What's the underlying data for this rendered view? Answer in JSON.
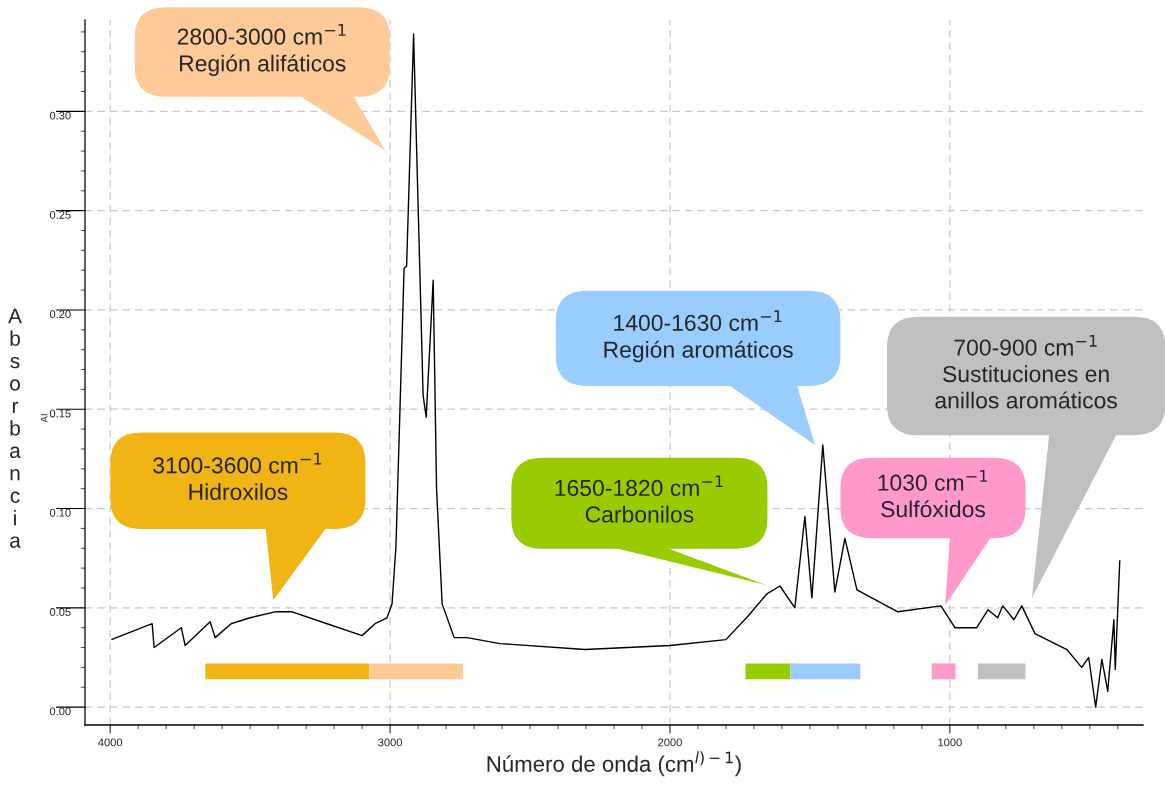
{
  "chart_data": {
    "type": "line",
    "xlabel": "Número de onda (cm$^{l)−1}$)",
    "ylabel": "Absorbancia",
    "xlim": [
      4090,
      310
    ],
    "ylim": [
      -0.009,
      0.346
    ],
    "xticks": [
      4000,
      {
        "value": 3900,
        "label": null
      },
      {
        "value": 3800,
        "label": null
      },
      {
        "value": 3700,
        "label": null
      },
      {
        "value": 3600,
        "label": null
      },
      {
        "value": 3500,
        "label": null
      },
      {
        "value": 3400,
        "label": null
      },
      {
        "value": 3300,
        "label": null
      },
      {
        "value": 3200,
        "label": null
      },
      {
        "value": 3100,
        "label": null
      },
      3000,
      {
        "value": 2900,
        "label": null
      },
      {
        "value": 2800,
        "label": null
      },
      {
        "value": 2700,
        "label": null
      },
      {
        "value": 2600,
        "label": null
      },
      {
        "value": 2500,
        "label": null
      },
      {
        "value": 2400,
        "label": null
      },
      {
        "value": 2300,
        "label": null
      },
      {
        "value": 2200,
        "label": null
      },
      {
        "value": 2100,
        "label": null
      },
      2000,
      {
        "value": 1900,
        "label": null
      },
      {
        "value": 1800,
        "label": null
      },
      {
        "value": 1700,
        "label": null
      },
      {
        "value": 1600,
        "label": null
      },
      {
        "value": 1500,
        "label": null
      },
      {
        "value": 1400,
        "label": null
      },
      {
        "value": 1300,
        "label": null
      },
      {
        "value": 1200,
        "label": null
      },
      {
        "value": 1100,
        "label": null
      },
      1000,
      {
        "value": 900,
        "label": null
      },
      {
        "value": 800,
        "label": null
      },
      {
        "value": 700,
        "label": null
      },
      {
        "value": 600,
        "label": null
      },
      {
        "value": 500,
        "label": null
      },
      {
        "value": 400,
        "label": null
      }
    ],
    "yticks": [
      {
        "value": 0,
        "label": "0.00"
      },
      {
        "value": 0.01,
        "label": null
      },
      {
        "value": 0.02,
        "label": null
      },
      {
        "value": 0.03,
        "label": null
      },
      {
        "value": 0.04,
        "label": null
      },
      {
        "value": 0.05,
        "label": "0.05"
      },
      {
        "value": 0.06,
        "label": null
      },
      {
        "value": 0.07,
        "label": null
      },
      {
        "value": 0.08,
        "label": null
      },
      {
        "value": 0.09,
        "label": null
      },
      {
        "value": 0.1,
        "label": "0.10"
      },
      {
        "value": 0.11,
        "label": null
      },
      {
        "value": 0.12,
        "label": null
      },
      {
        "value": 0.13,
        "label": null
      },
      {
        "value": 0.14,
        "label": null
      },
      {
        "value": 0.15,
        "label": "0.15"
      },
      {
        "value": 0.16,
        "label": null
      },
      {
        "value": 0.17,
        "label": null
      },
      {
        "value": 0.18,
        "label": null
      },
      {
        "value": 0.19,
        "label": null
      },
      {
        "value": 0.2,
        "label": "0.20"
      },
      {
        "value": 0.21,
        "label": null
      },
      {
        "value": 0.22,
        "label": null
      },
      {
        "value": 0.23,
        "label": null
      },
      {
        "value": 0.24,
        "label": null
      },
      {
        "value": 0.25,
        "label": "0.25"
      },
      {
        "value": 0.26,
        "label": null
      },
      {
        "value": 0.27,
        "label": null
      },
      {
        "value": 0.28,
        "label": null
      },
      {
        "value": 0.29,
        "label": null
      },
      {
        "value": 0.3,
        "label": "0.30"
      },
      {
        "value": 0.31,
        "label": null
      },
      {
        "value": 0.32,
        "label": null
      },
      {
        "value": 0.33,
        "label": null
      },
      {
        "value": 0.34,
        "label": null
      }
    ],
    "grid": true,
    "line_style": "solid",
    "marker": "none",
    "series": [
      {
        "color": "#000000",
        "x": [
          3996,
          3850,
          3843,
          3746,
          3732,
          3643,
          3625,
          3568,
          3500,
          3411,
          3350,
          3225,
          3100,
          3054,
          3011,
          2993,
          2979,
          2950,
          2941,
          2916,
          2882,
          2871,
          2846,
          2834,
          2814,
          2771,
          2725,
          2607,
          2304,
          2000,
          1800,
          1720,
          1654,
          1607,
          1554,
          1518,
          1493,
          1454,
          1411,
          1375,
          1332,
          1186,
          1032,
          982,
          904,
          864,
          829,
          811,
          771,
          743,
          696,
          582,
          529,
          504,
          479,
          457,
          436,
          414,
          409,
          393
        ],
        "values": [
          0.034,
          0.042,
          0.03,
          0.04,
          0.031,
          0.043,
          0.035,
          0.042,
          0.045,
          0.048,
          0.048,
          0.042,
          0.036,
          0.042,
          0.045,
          0.052,
          0.081,
          0.221,
          0.222,
          0.339,
          0.157,
          0.146,
          0.215,
          0.11,
          0.052,
          0.035,
          0.035,
          0.032,
          0.029,
          0.031,
          0.034,
          0.046,
          0.057,
          0.061,
          0.05,
          0.096,
          0.055,
          0.132,
          0.058,
          0.085,
          0.059,
          0.048,
          0.051,
          0.04,
          0.04,
          0.049,
          0.045,
          0.051,
          0.044,
          0.051,
          0.037,
          0.029,
          0.02,
          0.025,
          0.0,
          0.024,
          0.008,
          0.044,
          0.019,
          0.074
        ]
      },
      {
        "color": "#f0b414",
        "x": [
          3660,
          3075
        ],
        "values": [
          0.018,
          0.018
        ]
      },
      {
        "color": "#fecb98",
        "x": [
          3075,
          2740
        ],
        "values": [
          0.018,
          0.018
        ]
      },
      {
        "color": "#99cc00",
        "x": [
          1730,
          1570
        ],
        "values": [
          0.018,
          0.018
        ]
      },
      {
        "color": "#99ccff",
        "x": [
          1570,
          1320
        ],
        "values": [
          0.018,
          0.018
        ]
      },
      {
        "color": "#ff99cc",
        "x": [
          1065,
          980
        ],
        "values": [
          0.018,
          0.018
        ]
      },
      {
        "color": "#c0c0c0",
        "x": [
          900,
          730
        ],
        "values": [
          0.018,
          0.018
        ]
      }
    ],
    "annotations": [
      "3100-3600 cm$^{−1}$\nHidroxilos",
      "2800-3000 cm$^{−1}$\nRegión alifáticos",
      "1650-1820 cm$^{−1}$\nCarbonilos",
      "1400-1630 cm$^{−1}$\nRegión aromáticos",
      "1030 cm$^{−1}$\nSulfóxidos",
      "700-900 cm$^{−1}$\nSustituciones en\nanillos aromáticos",
      "AI"
    ]
  }
}
